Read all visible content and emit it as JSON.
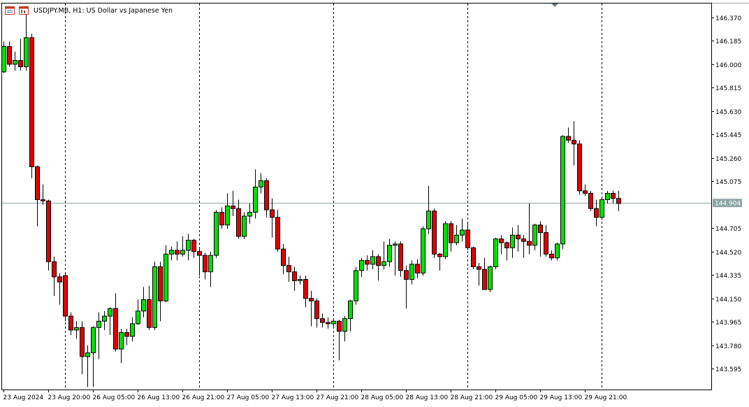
{
  "window": {
    "title": "USDJPY.MB, H1:  US Dollar vs Japanese Yen",
    "icons": [
      "chart-list-icon",
      "chart-properties-icon"
    ]
  },
  "colors": {
    "bull": "#00e000",
    "bear": "#e00000",
    "outline": "#000000",
    "bid_line": "#8fa5a5",
    "price_label_bg": "#8fa5a5",
    "price_label_text": "#ffffff",
    "separator": "#000000"
  },
  "chart_data": {
    "type": "candlestick",
    "symbol": "USDJPY.MB",
    "timeframe": "H1",
    "description": "US Dollar vs Japanese Yen",
    "current_price": 144.904,
    "current_price_label": "144.904",
    "ylim": [
      143.43,
      146.48
    ],
    "y_ticks": [
      "146.370",
      "146.185",
      "146.000",
      "145.815",
      "145.630",
      "145.445",
      "145.260",
      "145.075",
      "144.705",
      "144.520",
      "144.335",
      "144.150",
      "143.965",
      "143.780",
      "143.595"
    ],
    "x_labels": [
      "23 Aug 2024",
      "23 Aug 20:00",
      "26 Aug 05:00",
      "26 Aug 13:00",
      "26 Aug 21:00",
      "27 Aug 05:00",
      "27 Aug 13:00",
      "27 Aug 21:00",
      "28 Aug 05:00",
      "28 Aug 13:00",
      "28 Aug 21:00",
      "29 Aug 05:00",
      "29 Aug 13:00",
      "29 Aug 21:00"
    ],
    "x_label_bar_index": [
      0,
      8,
      16,
      24,
      32,
      40,
      48,
      56,
      64,
      72,
      80,
      88,
      96,
      104
    ],
    "day_separator_bar_index": [
      11,
      35,
      59,
      83,
      107
    ],
    "grid": false,
    "candles": [
      {
        "o": 145.94,
        "h": 146.18,
        "l": 145.93,
        "c": 146.14
      },
      {
        "o": 146.14,
        "h": 146.18,
        "l": 145.98,
        "c": 146.0
      },
      {
        "o": 146.0,
        "h": 146.1,
        "l": 145.95,
        "c": 146.03
      },
      {
        "o": 146.03,
        "h": 146.2,
        "l": 145.95,
        "c": 145.98
      },
      {
        "o": 145.98,
        "h": 146.46,
        "l": 145.95,
        "c": 146.21
      },
      {
        "o": 146.21,
        "h": 146.24,
        "l": 145.1,
        "c": 145.19
      },
      {
        "o": 145.19,
        "h": 145.2,
        "l": 144.72,
        "c": 144.93
      },
      {
        "o": 144.93,
        "h": 145.05,
        "l": 144.89,
        "c": 144.92
      },
      {
        "o": 144.92,
        "h": 144.93,
        "l": 144.37,
        "c": 144.44
      },
      {
        "o": 144.44,
        "h": 144.48,
        "l": 144.17,
        "c": 144.32
      },
      {
        "o": 144.32,
        "h": 144.35,
        "l": 144.1,
        "c": 144.28
      },
      {
        "o": 144.33,
        "h": 144.35,
        "l": 143.97,
        "c": 144.01
      },
      {
        "o": 144.01,
        "h": 144.04,
        "l": 143.86,
        "c": 143.9
      },
      {
        "o": 143.9,
        "h": 143.97,
        "l": 143.83,
        "c": 143.92
      },
      {
        "o": 143.92,
        "h": 143.97,
        "l": 143.55,
        "c": 143.69
      },
      {
        "o": 143.69,
        "h": 143.78,
        "l": 143.45,
        "c": 143.72
      },
      {
        "o": 143.72,
        "h": 143.93,
        "l": 143.45,
        "c": 143.92
      },
      {
        "o": 143.92,
        "h": 144.04,
        "l": 143.67,
        "c": 143.97
      },
      {
        "o": 143.97,
        "h": 144.05,
        "l": 143.9,
        "c": 144.01
      },
      {
        "o": 144.01,
        "h": 144.08,
        "l": 143.86,
        "c": 144.07
      },
      {
        "o": 144.07,
        "h": 144.19,
        "l": 143.73,
        "c": 143.75
      },
      {
        "o": 143.75,
        "h": 143.91,
        "l": 143.64,
        "c": 143.88
      },
      {
        "o": 143.88,
        "h": 143.91,
        "l": 143.78,
        "c": 143.85
      },
      {
        "o": 143.85,
        "h": 144.0,
        "l": 143.81,
        "c": 143.95
      },
      {
        "o": 143.95,
        "h": 144.14,
        "l": 143.94,
        "c": 144.05
      },
      {
        "o": 144.05,
        "h": 144.24,
        "l": 144.0,
        "c": 144.14
      },
      {
        "o": 144.14,
        "h": 144.25,
        "l": 143.9,
        "c": 143.92
      },
      {
        "o": 143.92,
        "h": 144.44,
        "l": 143.9,
        "c": 144.4
      },
      {
        "o": 144.4,
        "h": 144.44,
        "l": 143.97,
        "c": 144.13
      },
      {
        "o": 144.13,
        "h": 144.57,
        "l": 144.12,
        "c": 144.5
      },
      {
        "o": 144.5,
        "h": 144.56,
        "l": 144.45,
        "c": 144.53
      },
      {
        "o": 144.53,
        "h": 144.6,
        "l": 144.45,
        "c": 144.5
      },
      {
        "o": 144.5,
        "h": 144.64,
        "l": 144.48,
        "c": 144.53
      },
      {
        "o": 144.53,
        "h": 144.66,
        "l": 144.45,
        "c": 144.61
      },
      {
        "o": 144.61,
        "h": 144.62,
        "l": 144.47,
        "c": 144.52
      },
      {
        "o": 144.52,
        "h": 144.55,
        "l": 144.33,
        "c": 144.49
      },
      {
        "o": 144.49,
        "h": 144.51,
        "l": 144.3,
        "c": 144.36
      },
      {
        "o": 144.36,
        "h": 144.52,
        "l": 144.24,
        "c": 144.49
      },
      {
        "o": 144.49,
        "h": 144.85,
        "l": 144.47,
        "c": 144.83
      },
      {
        "o": 144.83,
        "h": 144.87,
        "l": 144.7,
        "c": 144.73
      },
      {
        "o": 144.73,
        "h": 144.98,
        "l": 144.7,
        "c": 144.88
      },
      {
        "o": 144.88,
        "h": 145.0,
        "l": 144.8,
        "c": 144.86
      },
      {
        "o": 144.86,
        "h": 144.93,
        "l": 144.62,
        "c": 144.64
      },
      {
        "o": 144.64,
        "h": 144.83,
        "l": 144.62,
        "c": 144.8
      },
      {
        "o": 144.8,
        "h": 144.9,
        "l": 144.74,
        "c": 144.83
      },
      {
        "o": 144.83,
        "h": 145.17,
        "l": 144.78,
        "c": 145.03
      },
      {
        "o": 145.03,
        "h": 145.14,
        "l": 144.98,
        "c": 145.08
      },
      {
        "o": 145.08,
        "h": 145.1,
        "l": 144.79,
        "c": 144.85
      },
      {
        "o": 144.85,
        "h": 144.94,
        "l": 144.63,
        "c": 144.79
      },
      {
        "o": 144.79,
        "h": 144.85,
        "l": 144.52,
        "c": 144.54
      },
      {
        "o": 144.54,
        "h": 144.58,
        "l": 144.34,
        "c": 144.41
      },
      {
        "o": 144.41,
        "h": 144.48,
        "l": 144.28,
        "c": 144.36
      },
      {
        "o": 144.36,
        "h": 144.4,
        "l": 144.21,
        "c": 144.29
      },
      {
        "o": 144.29,
        "h": 144.33,
        "l": 144.26,
        "c": 144.3
      },
      {
        "o": 144.3,
        "h": 144.33,
        "l": 144.08,
        "c": 144.15
      },
      {
        "o": 144.15,
        "h": 144.21,
        "l": 143.93,
        "c": 144.13
      },
      {
        "o": 144.13,
        "h": 144.15,
        "l": 143.92,
        "c": 143.99
      },
      {
        "o": 143.99,
        "h": 144.03,
        "l": 143.92,
        "c": 143.96
      },
      {
        "o": 143.96,
        "h": 144.0,
        "l": 143.91,
        "c": 143.95
      },
      {
        "o": 143.95,
        "h": 143.99,
        "l": 143.91,
        "c": 143.97
      },
      {
        "o": 143.97,
        "h": 143.98,
        "l": 143.66,
        "c": 143.89
      },
      {
        "o": 143.89,
        "h": 144.01,
        "l": 143.81,
        "c": 143.99
      },
      {
        "o": 143.99,
        "h": 144.14,
        "l": 143.89,
        "c": 144.13
      },
      {
        "o": 144.13,
        "h": 144.4,
        "l": 144.1,
        "c": 144.37
      },
      {
        "o": 144.37,
        "h": 144.47,
        "l": 144.32,
        "c": 144.45
      },
      {
        "o": 144.45,
        "h": 144.49,
        "l": 144.37,
        "c": 144.42
      },
      {
        "o": 144.42,
        "h": 144.53,
        "l": 144.38,
        "c": 144.48
      },
      {
        "o": 144.48,
        "h": 144.5,
        "l": 144.29,
        "c": 144.41
      },
      {
        "o": 144.41,
        "h": 144.6,
        "l": 144.38,
        "c": 144.44
      },
      {
        "o": 144.44,
        "h": 144.62,
        "l": 144.4,
        "c": 144.57
      },
      {
        "o": 144.57,
        "h": 144.6,
        "l": 144.33,
        "c": 144.58
      },
      {
        "o": 144.58,
        "h": 144.6,
        "l": 144.32,
        "c": 144.37
      },
      {
        "o": 144.37,
        "h": 144.41,
        "l": 144.07,
        "c": 144.3
      },
      {
        "o": 144.3,
        "h": 144.45,
        "l": 144.26,
        "c": 144.42
      },
      {
        "o": 144.42,
        "h": 144.46,
        "l": 144.31,
        "c": 144.35
      },
      {
        "o": 144.35,
        "h": 144.72,
        "l": 144.33,
        "c": 144.7
      },
      {
        "o": 144.7,
        "h": 145.04,
        "l": 144.66,
        "c": 144.84
      },
      {
        "o": 144.84,
        "h": 144.86,
        "l": 144.47,
        "c": 144.5
      },
      {
        "o": 144.5,
        "h": 144.51,
        "l": 144.37,
        "c": 144.48
      },
      {
        "o": 144.48,
        "h": 144.76,
        "l": 144.46,
        "c": 144.74
      },
      {
        "o": 144.74,
        "h": 144.76,
        "l": 144.52,
        "c": 144.59
      },
      {
        "o": 144.59,
        "h": 144.73,
        "l": 144.57,
        "c": 144.65
      },
      {
        "o": 144.65,
        "h": 144.78,
        "l": 144.6,
        "c": 144.69
      },
      {
        "o": 144.69,
        "h": 144.75,
        "l": 144.53,
        "c": 144.55
      },
      {
        "o": 144.55,
        "h": 144.56,
        "l": 144.38,
        "c": 144.4
      },
      {
        "o": 144.4,
        "h": 144.43,
        "l": 144.25,
        "c": 144.38
      },
      {
        "o": 144.38,
        "h": 144.47,
        "l": 144.22,
        "c": 144.22
      },
      {
        "o": 144.22,
        "h": 144.41,
        "l": 144.2,
        "c": 144.4
      },
      {
        "o": 144.4,
        "h": 144.63,
        "l": 144.38,
        "c": 144.62
      },
      {
        "o": 144.62,
        "h": 144.65,
        "l": 144.5,
        "c": 144.59
      },
      {
        "o": 144.59,
        "h": 144.6,
        "l": 144.45,
        "c": 144.55
      },
      {
        "o": 144.55,
        "h": 144.71,
        "l": 144.47,
        "c": 144.65
      },
      {
        "o": 144.65,
        "h": 144.73,
        "l": 144.52,
        "c": 144.62
      },
      {
        "o": 144.62,
        "h": 144.65,
        "l": 144.47,
        "c": 144.6
      },
      {
        "o": 144.6,
        "h": 144.9,
        "l": 144.5,
        "c": 144.57
      },
      {
        "o": 144.57,
        "h": 144.74,
        "l": 144.53,
        "c": 144.73
      },
      {
        "o": 144.73,
        "h": 144.76,
        "l": 144.48,
        "c": 144.67
      },
      {
        "o": 144.67,
        "h": 144.73,
        "l": 144.48,
        "c": 144.5
      },
      {
        "o": 144.5,
        "h": 144.53,
        "l": 144.45,
        "c": 144.47
      },
      {
        "o": 144.47,
        "h": 144.59,
        "l": 144.45,
        "c": 144.58
      },
      {
        "o": 144.58,
        "h": 145.44,
        "l": 144.54,
        "c": 145.43
      },
      {
        "o": 145.43,
        "h": 145.5,
        "l": 145.38,
        "c": 145.4
      },
      {
        "o": 145.4,
        "h": 145.55,
        "l": 145.2,
        "c": 145.37
      },
      {
        "o": 145.37,
        "h": 145.4,
        "l": 144.97,
        "c": 145.0
      },
      {
        "o": 145.0,
        "h": 145.05,
        "l": 144.96,
        "c": 144.98
      },
      {
        "o": 144.98,
        "h": 145.0,
        "l": 144.84,
        "c": 144.86
      },
      {
        "o": 144.86,
        "h": 144.93,
        "l": 144.72,
        "c": 144.79
      },
      {
        "o": 144.79,
        "h": 144.95,
        "l": 144.77,
        "c": 144.93
      },
      {
        "o": 144.93,
        "h": 145.0,
        "l": 144.9,
        "c": 144.98
      },
      {
        "o": 144.98,
        "h": 145.0,
        "l": 144.9,
        "c": 144.94
      },
      {
        "o": 144.94,
        "h": 145.0,
        "l": 144.84,
        "c": 144.9
      }
    ]
  }
}
